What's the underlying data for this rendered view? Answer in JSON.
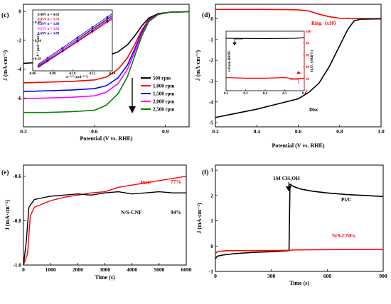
{
  "chart_data": [
    {
      "panel": "(c)",
      "type": "line",
      "xlabel": "Potential (V vs. RHE)",
      "ylabel": "J (mA·cm⁻²)",
      "xlim": [
        0.3,
        1.0
      ],
      "ylim": [
        -8,
        0.5
      ],
      "xticks": [
        "0.3",
        "0.6",
        "0.9"
      ],
      "yticks": [
        "-6",
        "-4",
        "-2",
        "0"
      ],
      "series": [
        {
          "name": "500 rpm",
          "color": "#000000",
          "limit": -3.5,
          "half_wave": 0.79,
          "points": [
            [
              0.3,
              -3.6
            ],
            [
              0.4,
              -3.5
            ],
            [
              0.5,
              -3.4
            ],
            [
              0.6,
              -3.25
            ],
            [
              0.65,
              -3.1
            ],
            [
              0.7,
              -2.8
            ],
            [
              0.74,
              -2.3
            ],
            [
              0.77,
              -1.7
            ],
            [
              0.8,
              -1.0
            ],
            [
              0.83,
              -0.45
            ],
            [
              0.87,
              -0.15
            ],
            [
              0.92,
              -0.05
            ],
            [
              1.0,
              -0.02
            ]
          ]
        },
        {
          "name": "1,000 rpm",
          "color": "#ff0000",
          "limit": -4.9,
          "half_wave": 0.785,
          "points": [
            [
              0.3,
              -4.95
            ],
            [
              0.4,
              -4.9
            ],
            [
              0.5,
              -4.85
            ],
            [
              0.6,
              -4.75
            ],
            [
              0.65,
              -4.55
            ],
            [
              0.7,
              -4.0
            ],
            [
              0.74,
              -3.2
            ],
            [
              0.77,
              -2.3
            ],
            [
              0.8,
              -1.3
            ],
            [
              0.83,
              -0.55
            ],
            [
              0.87,
              -0.2
            ],
            [
              0.92,
              -0.05
            ],
            [
              1.0,
              -0.02
            ]
          ]
        },
        {
          "name": "1,500 rpm",
          "color": "#0000ff",
          "limit": -5.5,
          "half_wave": 0.78,
          "points": [
            [
              0.3,
              -5.55
            ],
            [
              0.4,
              -5.5
            ],
            [
              0.5,
              -5.45
            ],
            [
              0.6,
              -5.35
            ],
            [
              0.65,
              -5.15
            ],
            [
              0.7,
              -4.6
            ],
            [
              0.74,
              -3.7
            ],
            [
              0.77,
              -2.6
            ],
            [
              0.8,
              -1.45
            ],
            [
              0.83,
              -0.6
            ],
            [
              0.87,
              -0.2
            ],
            [
              0.92,
              -0.05
            ],
            [
              1.0,
              -0.02
            ]
          ]
        },
        {
          "name": "2,000 rpm",
          "color": "#ff00ff",
          "limit": -6.0,
          "half_wave": 0.775,
          "points": [
            [
              0.3,
              -6.05
            ],
            [
              0.4,
              -6.0
            ],
            [
              0.5,
              -5.95
            ],
            [
              0.6,
              -5.85
            ],
            [
              0.65,
              -5.6
            ],
            [
              0.7,
              -5.0
            ],
            [
              0.74,
              -4.0
            ],
            [
              0.77,
              -2.8
            ],
            [
              0.8,
              -1.55
            ],
            [
              0.83,
              -0.65
            ],
            [
              0.87,
              -0.2
            ],
            [
              0.92,
              -0.05
            ],
            [
              1.0,
              -0.02
            ]
          ]
        },
        {
          "name": "2,500 rpm",
          "color": "#008000",
          "limit": -7.0,
          "half_wave": 0.77,
          "points": [
            [
              0.3,
              -7.0
            ],
            [
              0.4,
              -7.0
            ],
            [
              0.5,
              -6.95
            ],
            [
              0.6,
              -6.85
            ],
            [
              0.65,
              -6.5
            ],
            [
              0.7,
              -5.7
            ],
            [
              0.74,
              -4.5
            ],
            [
              0.77,
              -3.1
            ],
            [
              0.8,
              -1.7
            ],
            [
              0.83,
              -0.7
            ],
            [
              0.87,
              -0.2
            ],
            [
              0.92,
              -0.05
            ],
            [
              1.0,
              -0.02
            ]
          ]
        }
      ],
      "legend_placement": "right, stacked",
      "inset": {
        "type": "line",
        "xlabel": "ω⁻¹ᐟ² (rad⁻¹ᐟ²)",
        "ylabel": "J⁻¹ (mA⁻¹ cm²)",
        "xlim": [
          0.06,
          0.14
        ],
        "ylim": [
          0.14,
          0.34
        ],
        "xticks": [
          "0.06",
          "0.08",
          "0.10",
          "0.12",
          "0.14"
        ],
        "yticks": [
          "0.18",
          "0.24",
          "0.30"
        ],
        "entries": [
          {
            "label": "0.40V n = 4.01",
            "color": "#000000",
            "y0": 0.155,
            "y1": 0.322
          },
          {
            "label": "0.45V n = 3.93",
            "color": "#ff0000",
            "y0": 0.15,
            "y1": 0.31
          },
          {
            "label": "0.50V n = 3.80",
            "color": "#0000ff",
            "y0": 0.16,
            "y1": 0.328
          },
          {
            "label": "0.55V n = 3.82",
            "color": "#ff00ff",
            "y0": 0.157,
            "y1": 0.318
          },
          {
            "label": "0.60V n = 3.89",
            "color": "#000080",
            "y0": 0.152,
            "y1": 0.314
          }
        ]
      }
    },
    {
      "panel": "(d)",
      "type": "line",
      "xlabel": "Potential (V vs. RHE)",
      "ylabel": "J (mA·cm⁻²)",
      "xlim": [
        0.2,
        1.0
      ],
      "ylim": [
        -5.2,
        0.7
      ],
      "xticks": [
        "0.2",
        "0.4",
        "0.6",
        "0.8",
        "1.0"
      ],
      "yticks": [
        "-5",
        "-4",
        "-3",
        "-2",
        "-1",
        "0"
      ],
      "series": [
        {
          "name": "Ring（x10）",
          "color": "#ff0000",
          "points": [
            [
              0.2,
              0.45
            ],
            [
              0.4,
              0.45
            ],
            [
              0.55,
              0.44
            ],
            [
              0.6,
              0.43
            ],
            [
              0.65,
              0.38
            ],
            [
              0.7,
              0.22
            ],
            [
              0.75,
              0.1
            ],
            [
              0.8,
              0.03
            ],
            [
              0.85,
              0.01
            ],
            [
              1.0,
              0.0
            ]
          ]
        },
        {
          "name": "Disc",
          "color": "#000000",
          "points": [
            [
              0.2,
              -4.75
            ],
            [
              0.3,
              -4.55
            ],
            [
              0.4,
              -4.35
            ],
            [
              0.5,
              -4.1
            ],
            [
              0.6,
              -3.85
            ],
            [
              0.65,
              -3.55
            ],
            [
              0.7,
              -3.1
            ],
            [
              0.75,
              -2.3
            ],
            [
              0.8,
              -1.3
            ],
            [
              0.84,
              -0.5
            ],
            [
              0.87,
              -0.1
            ],
            [
              0.9,
              -0.02
            ],
            [
              1.0,
              0.0
            ]
          ]
        }
      ],
      "inset": {
        "type": "line",
        "xlim": [
          0.2,
          0.6
        ],
        "xticks": [
          "0.2",
          "0.3",
          "0.4",
          "0.5",
          "0.6"
        ],
        "ylabel_left": "n from RRDE",
        "ylabel_right": "H₂O₂ yield(%)",
        "yticks_right": [
          "0",
          "20",
          "40",
          "60",
          "80",
          "100"
        ],
        "ylim_right": [
          0,
          100
        ],
        "n_series": {
          "color": "#000000",
          "points": [
            [
              0.2,
              88
            ],
            [
              0.4,
              87.5
            ],
            [
              0.55,
              88
            ],
            [
              0.6,
              89
            ]
          ]
        },
        "h2o2_series": {
          "color": "#ff0000",
          "points": [
            [
              0.2,
              22
            ],
            [
              0.3,
              21
            ],
            [
              0.4,
              21
            ],
            [
              0.5,
              22
            ],
            [
              0.55,
              20
            ],
            [
              0.6,
              21
            ]
          ]
        }
      }
    },
    {
      "panel": "(e)",
      "type": "line",
      "xlabel": "Time (s)",
      "ylabel": "J (mA·cm⁻²)",
      "xlim": [
        0,
        6000
      ],
      "ylim": [
        -1.0,
        -0.55
      ],
      "xticks": [
        "0",
        "1000",
        "2000",
        "3000",
        "4000",
        "5000",
        "6000"
      ],
      "yticks": [
        "-1.0",
        "-0.8",
        "-0.6"
      ],
      "series": [
        {
          "name": "Pt/C",
          "color": "#ff0000",
          "retention": "77%",
          "points": [
            [
              0,
              -1.0
            ],
            [
              150,
              -0.95
            ],
            [
              250,
              -0.78
            ],
            [
              400,
              -0.74
            ],
            [
              600,
              -0.73
            ],
            [
              1000,
              -0.71
            ],
            [
              1500,
              -0.695
            ],
            [
              2000,
              -0.685
            ],
            [
              2500,
              -0.675
            ],
            [
              3000,
              -0.67
            ],
            [
              3500,
              -0.65
            ],
            [
              4000,
              -0.64
            ],
            [
              4500,
              -0.63
            ],
            [
              5000,
              -0.62
            ],
            [
              5500,
              -0.61
            ],
            [
              6000,
              -0.6
            ]
          ]
        },
        {
          "name": "N/S-CNF",
          "color": "#000000",
          "retention": "94%",
          "points": [
            [
              0,
              -1.0
            ],
            [
              100,
              -0.9
            ],
            [
              200,
              -0.74
            ],
            [
              400,
              -0.705
            ],
            [
              600,
              -0.7
            ],
            [
              1000,
              -0.69
            ],
            [
              1500,
              -0.685
            ],
            [
              2000,
              -0.68
            ],
            [
              2500,
              -0.685
            ],
            [
              3000,
              -0.675
            ],
            [
              3500,
              -0.67
            ],
            [
              4000,
              -0.68
            ],
            [
              4500,
              -0.675
            ],
            [
              5000,
              -0.67
            ],
            [
              5500,
              -0.675
            ],
            [
              6000,
              -0.675
            ]
          ]
        }
      ]
    },
    {
      "panel": "(f)",
      "type": "line",
      "xlabel": "Time (s)",
      "ylabel": "J (mA·cm⁻²)",
      "xlim": [
        0,
        900
      ],
      "ylim": [
        -1.0,
        3.2
      ],
      "xticks": [
        "0",
        "300",
        "600",
        "900"
      ],
      "yticks": [
        "-1",
        "0",
        "1",
        "2",
        "3"
      ],
      "annotations": [
        "1M CH₃OH"
      ],
      "series": [
        {
          "name": "Pt/C",
          "color": "#000000",
          "points": [
            [
              0,
              -0.5
            ],
            [
              10,
              -0.4
            ],
            [
              40,
              -0.35
            ],
            [
              100,
              -0.3
            ],
            [
              200,
              -0.25
            ],
            [
              300,
              -0.22
            ],
            [
              395,
              -0.18
            ],
            [
              400,
              2.45
            ],
            [
              420,
              2.35
            ],
            [
              460,
              2.25
            ],
            [
              520,
              2.17
            ],
            [
              600,
              2.1
            ],
            [
              700,
              2.04
            ],
            [
              800,
              2.0
            ],
            [
              900,
              1.96
            ]
          ]
        },
        {
          "name": "N/S-CNFs",
          "color": "#ff0000",
          "points": [
            [
              0,
              -0.3
            ],
            [
              10,
              -0.22
            ],
            [
              60,
              -0.18
            ],
            [
              200,
              -0.18
            ],
            [
              400,
              -0.17
            ],
            [
              420,
              -0.15
            ],
            [
              600,
              -0.14
            ],
            [
              900,
              -0.13
            ]
          ]
        }
      ]
    }
  ]
}
